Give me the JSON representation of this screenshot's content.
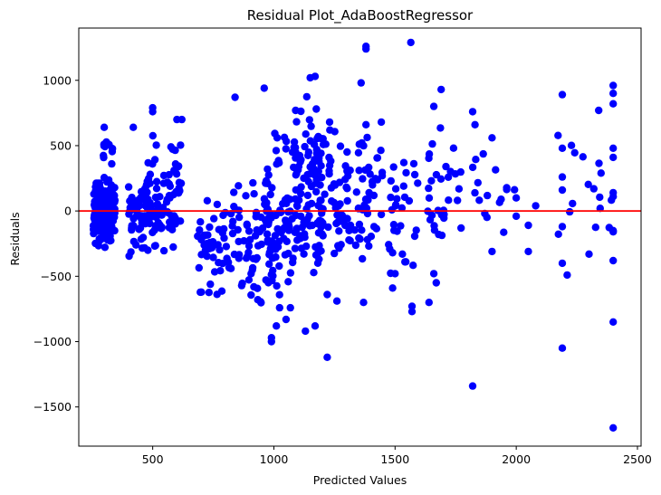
{
  "chart_data": {
    "type": "scatter",
    "title": "Residual Plot_AdaBoostRegressor",
    "xlabel": "Predicted Values",
    "ylabel": "Residuals",
    "xlim": [
      195,
      2515
    ],
    "ylim": [
      -1800,
      1400
    ],
    "xticks": [
      500,
      1000,
      1500,
      2000,
      2500
    ],
    "yticks": [
      -1500,
      -1000,
      -500,
      0,
      500,
      1000
    ],
    "xtick_labels": [
      "500",
      "1000",
      "1500",
      "2000",
      "2500"
    ],
    "ytick_labels": [
      "−1500",
      "−1000",
      "−500",
      "0",
      "500",
      "1000"
    ],
    "point_color": "#0000ff",
    "reference_line": {
      "y": 0,
      "color": "#ff0000"
    },
    "grid": false,
    "clusters": [
      {
        "x": [
          255,
          345
        ],
        "y": [
          -330,
          320
        ],
        "n": 200
      },
      {
        "x": [
          290,
          335
        ],
        "y": [
          320,
          650
        ],
        "n": 10
      },
      {
        "x": [
          400,
          520
        ],
        "y": [
          -480,
          380
        ],
        "n": 70
      },
      {
        "x": [
          460,
          620
        ],
        "y": [
          -380,
          700
        ],
        "n": 70
      },
      {
        "x": [
          680,
          800
        ],
        "y": [
          -760,
          250
        ],
        "n": 45
      },
      {
        "x": [
          800,
          1000
        ],
        "y": [
          -880,
          350
        ],
        "n": 70
      },
      {
        "x": [
          960,
          1080
        ],
        "y": [
          -1000,
          850
        ],
        "n": 80
      },
      {
        "x": [
          1080,
          1200
        ],
        "y": [
          -820,
          1000
        ],
        "n": 110
      },
      {
        "x": [
          1200,
          1320
        ],
        "y": [
          -800,
          900
        ],
        "n": 55
      },
      {
        "x": [
          1330,
          1450
        ],
        "y": [
          -700,
          950
        ],
        "n": 45
      },
      {
        "x": [
          1470,
          1600
        ],
        "y": [
          -750,
          700
        ],
        "n": 30
      },
      {
        "x": [
          1630,
          1780
        ],
        "y": [
          -600,
          900
        ],
        "n": 30
      },
      {
        "x": [
          1820,
          2000
        ],
        "y": [
          -300,
          560
        ],
        "n": 15
      },
      {
        "x": [
          2150,
          2410
        ],
        "y": [
          -500,
          880
        ],
        "n": 14
      }
    ],
    "points": [
      [
        1565,
        1290
      ],
      [
        1380,
        1260
      ],
      [
        1380,
        1240
      ],
      [
        1170,
        1030
      ],
      [
        1150,
        1020
      ],
      [
        1360,
        980
      ],
      [
        960,
        940
      ],
      [
        1690,
        930
      ],
      [
        2400,
        960
      ],
      [
        2400,
        900
      ],
      [
        2190,
        890
      ],
      [
        840,
        870
      ],
      [
        1660,
        800
      ],
      [
        2400,
        820
      ],
      [
        2340,
        770
      ],
      [
        420,
        640
      ],
      [
        300,
        640
      ],
      [
        500,
        790
      ],
      [
        500,
        760
      ],
      [
        620,
        700
      ],
      [
        600,
        700
      ],
      [
        1230,
        680
      ],
      [
        1380,
        660
      ],
      [
        1820,
        760
      ],
      [
        1830,
        660
      ],
      [
        1900,
        560
      ],
      [
        2190,
        480
      ],
      [
        2400,
        480
      ],
      [
        2400,
        410
      ],
      [
        2350,
        290
      ],
      [
        2190,
        260
      ],
      [
        2190,
        160
      ],
      [
        2320,
        170
      ],
      [
        2400,
        140
      ],
      [
        2400,
        110
      ],
      [
        2000,
        100
      ],
      [
        2080,
        40
      ],
      [
        2000,
        -40
      ],
      [
        2050,
        -110
      ],
      [
        2190,
        -120
      ],
      [
        2400,
        -150
      ],
      [
        2400,
        -160
      ],
      [
        2300,
        -330
      ],
      [
        2190,
        -400
      ],
      [
        2400,
        -380
      ],
      [
        2210,
        -490
      ],
      [
        2050,
        -310
      ],
      [
        1900,
        -310
      ],
      [
        2400,
        -850
      ],
      [
        2190,
        -1050
      ],
      [
        1820,
        -1340
      ],
      [
        2400,
        -1660
      ],
      [
        1220,
        -1120
      ],
      [
        1130,
        -920
      ],
      [
        990,
        -970
      ],
      [
        990,
        -1000
      ],
      [
        1010,
        -880
      ],
      [
        1050,
        -830
      ],
      [
        1170,
        -880
      ],
      [
        1570,
        -730
      ],
      [
        1570,
        -770
      ],
      [
        1640,
        -700
      ],
      [
        1670,
        -550
      ],
      [
        1490,
        -590
      ],
      [
        1500,
        -480
      ],
      [
        1370,
        -700
      ],
      [
        1260,
        -690
      ],
      [
        1220,
        -640
      ],
      [
        1490,
        -320
      ],
      [
        1870,
        -20
      ],
      [
        1660,
        -480
      ],
      [
        1680,
        -180
      ]
    ]
  }
}
